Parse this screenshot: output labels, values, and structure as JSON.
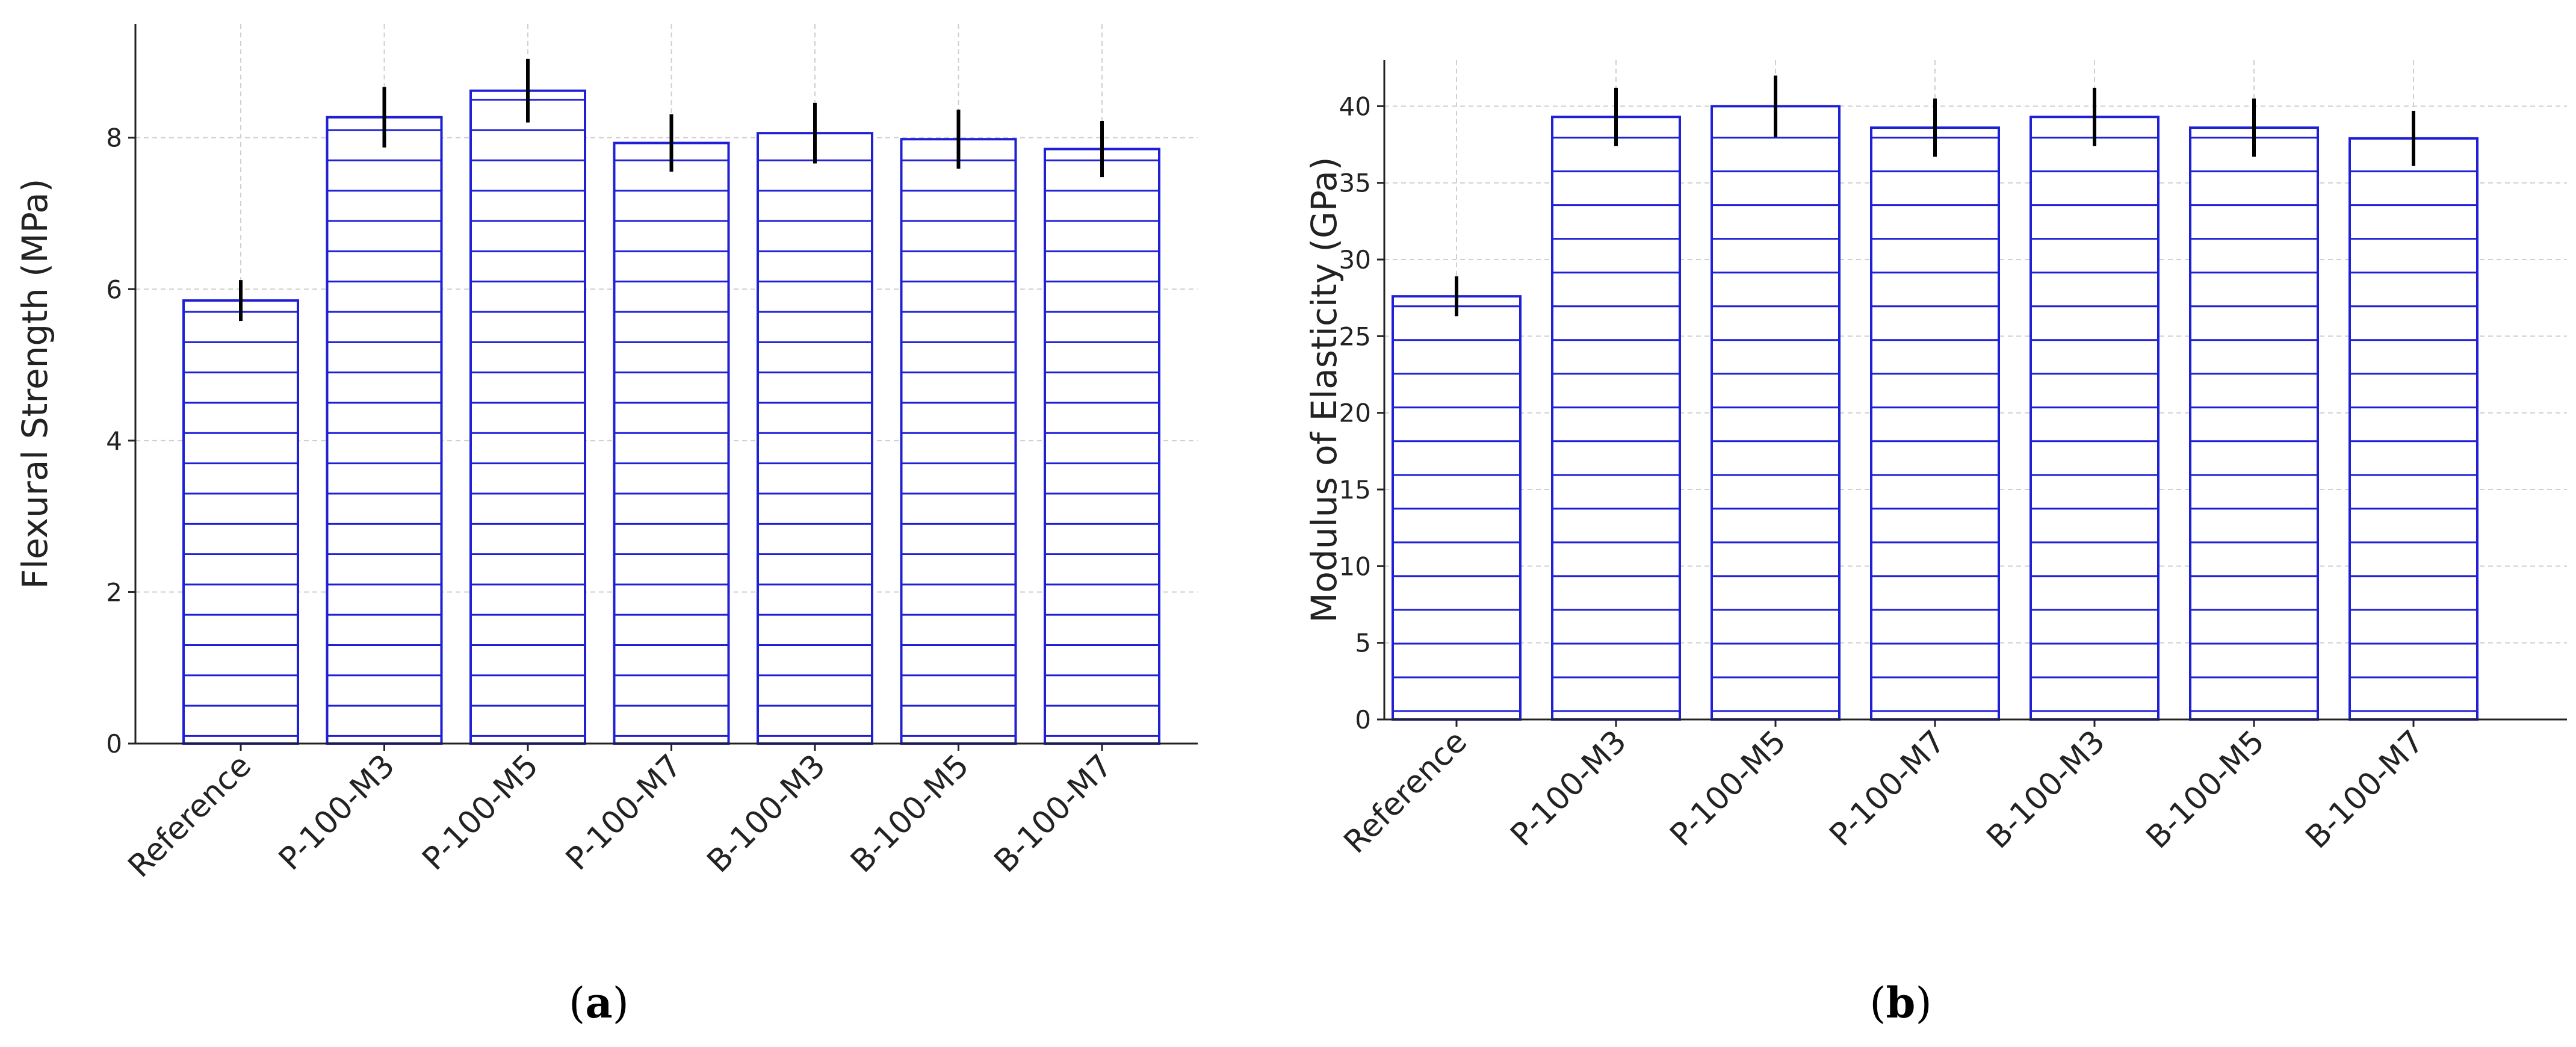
{
  "colors": {
    "bar_edge": "#1f1fd6",
    "hatch": "#1f1fd6",
    "error_bar": "#000000",
    "grid": "#cfcfcf",
    "axis": "#222222"
  },
  "chart_data": [
    {
      "type": "bar",
      "panel_label": "(a)",
      "ylabel": "Flexural Strength (MPa)",
      "categories": [
        "Reference",
        "P-100-M3",
        "P-100-M5",
        "P-100-M7",
        "B-100-M3",
        "B-100-M5",
        "B-100-M7"
      ],
      "values": [
        5.85,
        8.27,
        8.62,
        7.93,
        8.06,
        7.98,
        7.85
      ],
      "errors": [
        0.27,
        0.4,
        0.42,
        0.38,
        0.4,
        0.39,
        0.37
      ],
      "ylim": [
        0,
        9.5
      ],
      "yticks": [
        0,
        2,
        4,
        6,
        8
      ],
      "ytick_labels": [
        "0",
        "2",
        "4",
        "6",
        "8"
      ],
      "grid": true,
      "hatch": "horizontal"
    },
    {
      "type": "bar",
      "panel_label": "(b)",
      "ylabel": "Modulus of Elasticity (GPa)",
      "categories": [
        "Reference",
        "P-100-M3",
        "P-100-M5",
        "P-100-M7",
        "B-100-M3",
        "B-100-M5",
        "B-100-M7"
      ],
      "values": [
        27.6,
        39.3,
        40.0,
        38.6,
        39.3,
        38.6,
        37.9
      ],
      "errors": [
        1.3,
        1.9,
        2.0,
        1.9,
        1.9,
        1.9,
        1.8
      ],
      "ylim": [
        0,
        43
      ],
      "yticks": [
        0,
        5,
        10,
        15,
        20,
        25,
        30,
        35,
        40
      ],
      "ytick_labels": [
        "0",
        "5",
        "10",
        "15",
        "20",
        "25",
        "30",
        "35",
        "40"
      ],
      "grid": true,
      "hatch": "horizontal"
    }
  ]
}
